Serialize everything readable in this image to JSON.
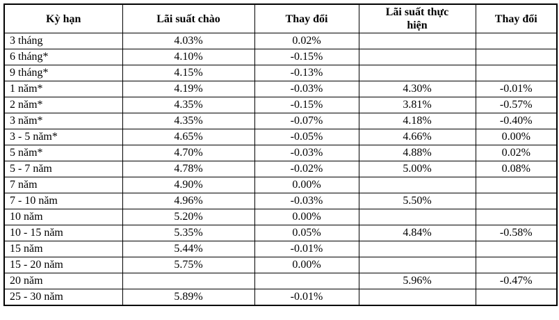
{
  "page": {
    "background_color": "#ffffff",
    "border_color": "#000000",
    "text_color": "#000000"
  },
  "table": {
    "headers": [
      "Kỳ hạn",
      "Lãi suất chào",
      "Thay đổi",
      "Lãi suất thực hiện",
      "Thay đổi"
    ],
    "rows": [
      [
        "3 tháng",
        "4.03%",
        "0.02%",
        "",
        ""
      ],
      [
        "6 tháng*",
        "4.10%",
        "-0.15%",
        "",
        ""
      ],
      [
        "9 tháng*",
        "4.15%",
        "-0.13%",
        "",
        ""
      ],
      [
        "1 năm*",
        "4.19%",
        "-0.03%",
        "4.30%",
        "-0.01%"
      ],
      [
        "2 năm*",
        "4.35%",
        "-0.15%",
        "3.81%",
        "-0.57%"
      ],
      [
        "3 năm*",
        "4.35%",
        "-0.07%",
        "4.18%",
        "-0.40%"
      ],
      [
        "3 - 5 năm*",
        "4.65%",
        "-0.05%",
        "4.66%",
        "0.00%"
      ],
      [
        "5 năm*",
        "4.70%",
        "-0.03%",
        "4.88%",
        "0.02%"
      ],
      [
        "5 - 7 năm",
        "4.78%",
        "-0.02%",
        "5.00%",
        "0.08%"
      ],
      [
        "7 năm",
        "4.90%",
        "0.00%",
        "",
        ""
      ],
      [
        "7 - 10 năm",
        "4.96%",
        "-0.03%",
        "5.50%",
        ""
      ],
      [
        "10 năm",
        "5.20%",
        "0.00%",
        "",
        ""
      ],
      [
        "10 - 15 năm",
        "5.35%",
        "0.05%",
        "4.84%",
        "-0.58%"
      ],
      [
        "15 năm",
        "5.44%",
        "-0.01%",
        "",
        ""
      ],
      [
        "15 - 20 năm",
        "5.75%",
        "0.00%",
        "",
        ""
      ],
      [
        "20 năm",
        "",
        "",
        "5.96%",
        "-0.47%"
      ],
      [
        "25 - 30 năm",
        "5.89%",
        "-0.01%",
        "",
        ""
      ]
    ]
  }
}
